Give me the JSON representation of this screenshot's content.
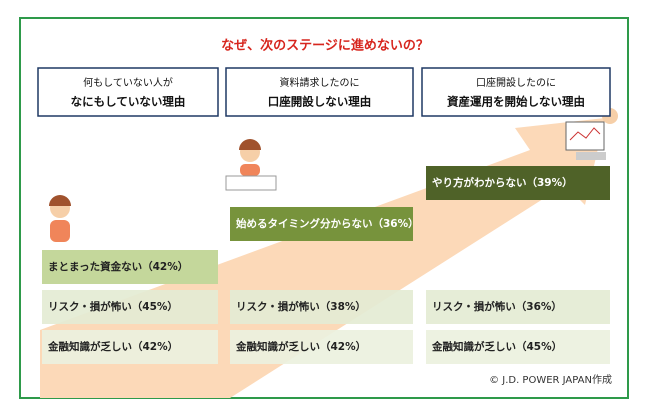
{
  "title": "なぜ、次のステージに進めないの？",
  "stages": [
    {
      "header": [
        "何もしていない人が",
        "なにもしていない理由"
      ],
      "reasons": [
        "まとまった資金ない（42%）",
        "リスク・損が怖い（45%）",
        "金融知識が乏しい（42%）"
      ]
    },
    {
      "header": [
        "資料請求したのに",
        "口座開設しない理由"
      ],
      "reasons": [
        "始めるタイミング分からない（36%）",
        "リスク・損が怖い（38%）",
        "金融知識が乏しい（42%）"
      ]
    },
    {
      "header": [
        "口座開設したのに",
        "資産運用を開始しない理由"
      ],
      "reasons": [
        "やり方がわからない（39%）",
        "リスク・損が怖い（36%）",
        "金融知識が乏しい（45%）"
      ]
    }
  ],
  "footer": "© J.D. POWER  JAPAN作成"
}
